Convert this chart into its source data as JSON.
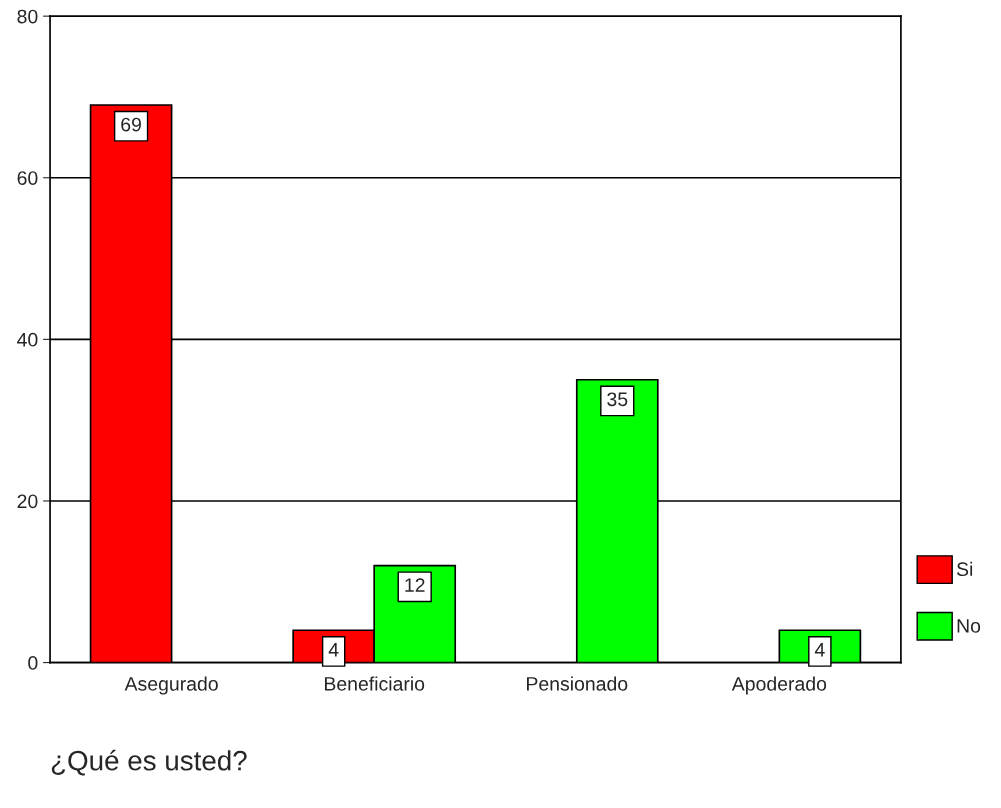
{
  "chart_data": {
    "type": "bar",
    "categories": [
      "Asegurado",
      "Beneficiario",
      "Pensionado",
      "Apoderado"
    ],
    "series": [
      {
        "name": "Si",
        "color": "#ff0000",
        "values": [
          69,
          4,
          null,
          null
        ]
      },
      {
        "name": "No",
        "color": "#00ff00",
        "values": [
          null,
          12,
          35,
          4
        ]
      }
    ],
    "xlabel": "¿Qué es usted?",
    "ylim": [
      0,
      80
    ],
    "yticks": [
      0,
      20,
      40,
      60,
      80
    ],
    "grid": "y",
    "legend": "right",
    "data_labels": true
  }
}
